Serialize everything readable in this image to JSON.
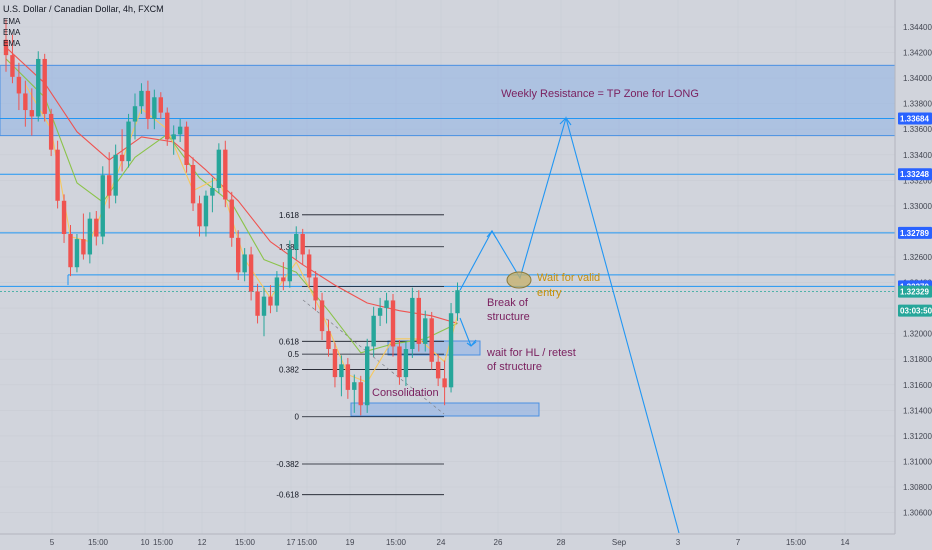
{
  "chart_data": {
    "type": "candlestick",
    "title": "U.S. Dollar / Canadian Dollar, 4h, FXCM",
    "indicators": [
      "EMA",
      "EMA",
      "EMA"
    ],
    "y_axis": {
      "ticks": [
        "1.34400",
        "1.34200",
        "1.34000",
        "1.33800",
        "1.33600",
        "1.33400",
        "1.33200",
        "1.33000",
        "1.32800",
        "1.32600",
        "1.32400",
        "1.32200",
        "1.32000",
        "1.31800",
        "1.31600",
        "1.31400",
        "1.31200",
        "1.31000",
        "1.30800",
        "1.30600"
      ],
      "range": [
        1.3047,
        1.3458
      ]
    },
    "x_axis": {
      "ticks": [
        "5",
        "15:00",
        "10",
        "15:00",
        "12",
        "15:00",
        "17",
        "15:00",
        "19",
        "15:00",
        "24",
        "26",
        "28",
        "Sep",
        "3",
        "7",
        "15:00",
        "14"
      ]
    },
    "price_badges": [
      {
        "label": "1.33684",
        "value": 1.33684,
        "color": "#2962ff"
      },
      {
        "label": "1.33248",
        "value": 1.33248,
        "color": "#2962ff"
      },
      {
        "label": "1.32789",
        "value": 1.32789,
        "color": "#2962ff"
      },
      {
        "label": "1.32370",
        "value": 1.3237,
        "color": "#2962ff"
      },
      {
        "label": "1.32329",
        "value": 1.32329,
        "color": "#26a69a"
      },
      {
        "label": "03:03:50",
        "value": 1.3218,
        "color": "#26a69a"
      }
    ],
    "horizontal_levels": [
      1.33684,
      1.33248,
      1.32789,
      1.3237,
      1.32329
    ],
    "weekly_resistance_zone": [
      1.3355,
      1.341
    ],
    "fibonacci": [
      {
        "label": "1.618",
        "value": 1.3293
      },
      {
        "label": "1.382",
        "value": 1.3268
      },
      {
        "label": "0.618",
        "value": 1.3194
      },
      {
        "label": "0.5",
        "value": 1.3184
      },
      {
        "label": "0.382",
        "value": 1.3172
      },
      {
        "label": "0",
        "value": 1.3135
      },
      {
        "label": "-0.382",
        "value": 1.3098
      },
      {
        "label": "-0.618",
        "value": 1.3074
      }
    ],
    "candles": [
      [
        1.343,
        1.3446,
        1.3405,
        1.3418
      ],
      [
        1.3418,
        1.3434,
        1.3396,
        1.3401
      ],
      [
        1.3401,
        1.3412,
        1.3375,
        1.3388
      ],
      [
        1.3388,
        1.3398,
        1.3362,
        1.3375
      ],
      [
        1.3375,
        1.3392,
        1.3355,
        1.337
      ],
      [
        1.337,
        1.3421,
        1.3366,
        1.3415
      ],
      [
        1.3415,
        1.3419,
        1.3366,
        1.3372
      ],
      [
        1.3372,
        1.3376,
        1.3339,
        1.3344
      ],
      [
        1.3344,
        1.3351,
        1.3298,
        1.3304
      ],
      [
        1.3304,
        1.3309,
        1.3271,
        1.3278
      ],
      [
        1.3278,
        1.3285,
        1.3245,
        1.3252
      ],
      [
        1.3252,
        1.3278,
        1.3248,
        1.3274
      ],
      [
        1.3274,
        1.3294,
        1.3258,
        1.3262
      ],
      [
        1.3262,
        1.3295,
        1.3255,
        1.329
      ],
      [
        1.329,
        1.3296,
        1.3269,
        1.3276
      ],
      [
        1.3276,
        1.3331,
        1.327,
        1.3324
      ],
      [
        1.3324,
        1.3342,
        1.3298,
        1.3308
      ],
      [
        1.3308,
        1.3348,
        1.3302,
        1.334
      ],
      [
        1.334,
        1.336,
        1.3327,
        1.3335
      ],
      [
        1.3335,
        1.3372,
        1.333,
        1.3366
      ],
      [
        1.3366,
        1.3388,
        1.3352,
        1.3378
      ],
      [
        1.3378,
        1.3396,
        1.3372,
        1.339
      ],
      [
        1.339,
        1.3398,
        1.336,
        1.3368
      ],
      [
        1.3368,
        1.3391,
        1.336,
        1.3385
      ],
      [
        1.3385,
        1.3389,
        1.3368,
        1.3373
      ],
      [
        1.3373,
        1.3377,
        1.3347,
        1.3352
      ],
      [
        1.3352,
        1.3363,
        1.334,
        1.3356
      ],
      [
        1.3356,
        1.3368,
        1.335,
        1.3362
      ],
      [
        1.3362,
        1.3366,
        1.3326,
        1.3332
      ],
      [
        1.3332,
        1.3338,
        1.3296,
        1.3302
      ],
      [
        1.3302,
        1.3308,
        1.3276,
        1.3284
      ],
      [
        1.3284,
        1.3312,
        1.3276,
        1.3308
      ],
      [
        1.3308,
        1.3322,
        1.3295,
        1.3314
      ],
      [
        1.3314,
        1.3349,
        1.331,
        1.3344
      ],
      [
        1.3344,
        1.3351,
        1.3299,
        1.3305
      ],
      [
        1.3305,
        1.3311,
        1.3268,
        1.3275
      ],
      [
        1.3275,
        1.3281,
        1.3242,
        1.3248
      ],
      [
        1.3248,
        1.3267,
        1.3241,
        1.3262
      ],
      [
        1.3262,
        1.3268,
        1.3226,
        1.3233
      ],
      [
        1.3233,
        1.3239,
        1.3208,
        1.3214
      ],
      [
        1.3214,
        1.3236,
        1.3198,
        1.3229
      ],
      [
        1.3229,
        1.3238,
        1.3216,
        1.3222
      ],
      [
        1.3222,
        1.3249,
        1.3217,
        1.3244
      ],
      [
        1.3244,
        1.3256,
        1.3234,
        1.3241
      ],
      [
        1.3241,
        1.3273,
        1.3236,
        1.3266
      ],
      [
        1.3266,
        1.3284,
        1.3258,
        1.3278
      ],
      [
        1.3278,
        1.3282,
        1.3254,
        1.3262
      ],
      [
        1.3262,
        1.3266,
        1.3236,
        1.3244
      ],
      [
        1.3244,
        1.3249,
        1.3218,
        1.3226
      ],
      [
        1.3226,
        1.3232,
        1.3195,
        1.3202
      ],
      [
        1.3202,
        1.3211,
        1.3182,
        1.3188
      ],
      [
        1.3188,
        1.3193,
        1.3158,
        1.3166
      ],
      [
        1.3166,
        1.3183,
        1.3151,
        1.3176
      ],
      [
        1.3176,
        1.3181,
        1.3149,
        1.3156
      ],
      [
        1.3156,
        1.3168,
        1.3138,
        1.3162
      ],
      [
        1.3162,
        1.3167,
        1.3136,
        1.3144
      ],
      [
        1.3144,
        1.3196,
        1.3138,
        1.319
      ],
      [
        1.319,
        1.3221,
        1.3182,
        1.3214
      ],
      [
        1.3214,
        1.3228,
        1.3206,
        1.322
      ],
      [
        1.322,
        1.3232,
        1.3208,
        1.3226
      ],
      [
        1.3226,
        1.3231,
        1.3182,
        1.319
      ],
      [
        1.319,
        1.3195,
        1.316,
        1.3166
      ],
      [
        1.3166,
        1.3194,
        1.3159,
        1.3188
      ],
      [
        1.3188,
        1.3236,
        1.3181,
        1.3228
      ],
      [
        1.3228,
        1.3234,
        1.3186,
        1.3192
      ],
      [
        1.3192,
        1.3218,
        1.3186,
        1.3212
      ],
      [
        1.3212,
        1.3217,
        1.3172,
        1.3178
      ],
      [
        1.3178,
        1.3184,
        1.3159,
        1.3165
      ],
      [
        1.3165,
        1.3179,
        1.3144,
        1.3158
      ],
      [
        1.3158,
        1.3224,
        1.3154,
        1.3216
      ],
      [
        1.3216,
        1.324,
        1.321,
        1.3234
      ]
    ],
    "ema_fast": [
      [
        3,
        1.3395
      ],
      [
        7,
        1.336
      ],
      [
        10,
        1.3276
      ],
      [
        13,
        1.3272
      ],
      [
        17,
        1.3322
      ],
      [
        21,
        1.3376
      ],
      [
        25,
        1.336
      ],
      [
        29,
        1.3312
      ],
      [
        33,
        1.3322
      ],
      [
        37,
        1.3258
      ],
      [
        41,
        1.3228
      ],
      [
        45,
        1.3256
      ],
      [
        49,
        1.3216
      ],
      [
        53,
        1.3168
      ],
      [
        56,
        1.3162
      ],
      [
        60,
        1.3196
      ],
      [
        64,
        1.3196
      ],
      [
        68,
        1.3178
      ],
      [
        70,
        1.3214
      ]
    ],
    "ema_mid": [
      [
        0,
        1.3415
      ],
      [
        6,
        1.3385
      ],
      [
        11,
        1.3318
      ],
      [
        15,
        1.3303
      ],
      [
        20,
        1.3338
      ],
      [
        25,
        1.3356
      ],
      [
        30,
        1.3322
      ],
      [
        35,
        1.3302
      ],
      [
        40,
        1.3258
      ],
      [
        45,
        1.3248
      ],
      [
        50,
        1.3218
      ],
      [
        55,
        1.3185
      ],
      [
        60,
        1.3192
      ],
      [
        65,
        1.3196
      ],
      [
        70,
        1.3208
      ]
    ],
    "ema_slow": [
      [
        0,
        1.3424
      ],
      [
        6,
        1.3396
      ],
      [
        11,
        1.3358
      ],
      [
        16,
        1.3336
      ],
      [
        21,
        1.3354
      ],
      [
        26,
        1.335
      ],
      [
        31,
        1.3328
      ],
      [
        36,
        1.3304
      ],
      [
        41,
        1.3272
      ],
      [
        46,
        1.3254
      ],
      [
        51,
        1.3238
      ],
      [
        56,
        1.3224
      ],
      [
        61,
        1.3218
      ],
      [
        66,
        1.3214
      ],
      [
        70,
        1.3208
      ]
    ],
    "projection_path": [
      [
        0,
        1.3234
      ],
      [
        6,
        1.3275
      ],
      [
        10,
        1.324
      ],
      [
        17,
        1.3365
      ],
      [
        42,
        1.3035
      ]
    ],
    "annotations": {
      "resistance": "Weekly Resistance = TP Zone for LONG",
      "wait_entry_1": "Wait for valid",
      "wait_entry_2": "entry",
      "break_1": "Break of",
      "break_2": "structure",
      "wait_hl_1": "wait for HL / retest",
      "wait_hl_2": "of structure",
      "consolidation": "Consolidation"
    },
    "colors": {
      "up": "#26a69a",
      "down": "#ef5350",
      "ema_fast": "#f6c85f",
      "ema_mid": "#8bc34a",
      "ema_slow": "#ef5350",
      "blue": "#2196f3",
      "purple": "#7a1f5e",
      "orange": "#c8900a"
    }
  }
}
